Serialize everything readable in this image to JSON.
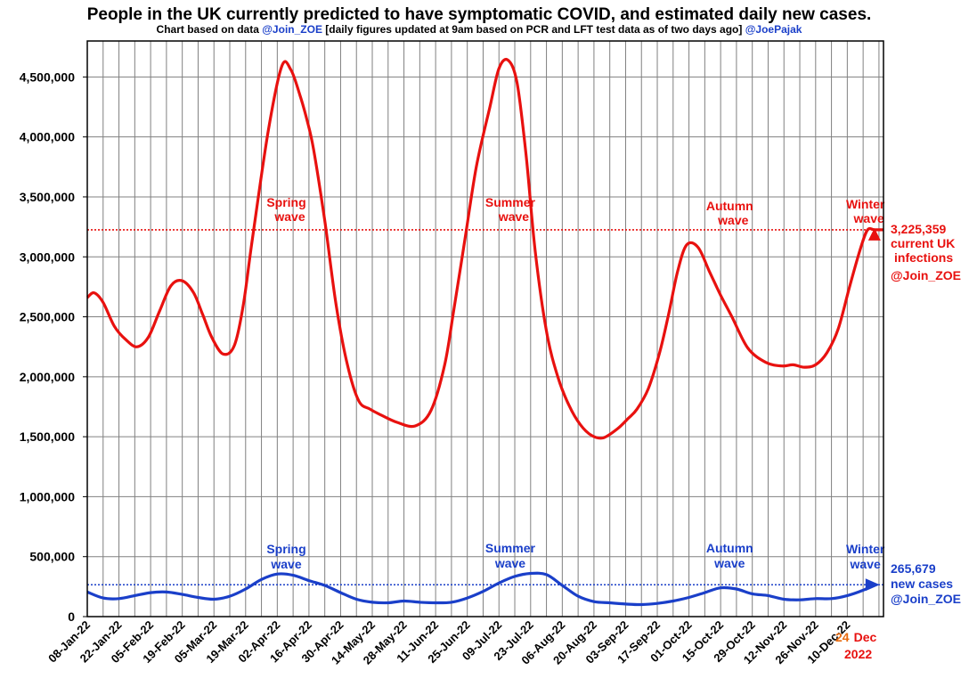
{
  "chart_data": {
    "type": "line",
    "title": "People in the UK currently predicted to have symptomatic COVID, and estimated daily new cases.",
    "subtitle": {
      "prefix": "Chart based on data ",
      "source_handle": "@Join_ZOE",
      "middle": " [daily figures updated at 9am based on PCR and LFT test data as of two days ago] ",
      "author_handle": "@JoePajak"
    },
    "ylim": [
      0,
      4800000
    ],
    "yticks": [
      0,
      500000,
      1000000,
      1500000,
      2000000,
      2500000,
      3000000,
      3500000,
      4000000,
      4500000
    ],
    "ytick_labels": [
      "0",
      "500,000",
      "1,000,000",
      "1,500,000",
      "2,000,000",
      "2,500,000",
      "3,000,000",
      "3,500,000",
      "4,000,000",
      "4,500,000"
    ],
    "x_start": "08-Jan-22",
    "x_end_day": 352,
    "xtick_labels": [
      "08-Jan-22",
      "22-Jan-22",
      "05-Feb-22",
      "19-Feb-22",
      "05-Mar-22",
      "19-Mar-22",
      "02-Apr-22",
      "16-Apr-22",
      "30-Apr-22",
      "14-May-22",
      "28-May-22",
      "11-Jun-22",
      "25-Jun-22",
      "09-Jul-22",
      "23-Jul-22",
      "06-Aug-22",
      "20-Aug-22",
      "03-Sep-22",
      "17-Sep-22",
      "01-Oct-22",
      "15-Oct-22",
      "29-Oct-22",
      "12-Nov-22",
      "26-Nov-22",
      "10-Dec-22"
    ],
    "xtick_interval_days": 14,
    "grid": true,
    "series": [
      {
        "name": "Currently predicted symptomatic COVID",
        "color": "#e8110f",
        "x": [
          0,
          3,
          7,
          12,
          17,
          22,
          27,
          32,
          37,
          42,
          47,
          51,
          55,
          60,
          65,
          69,
          73,
          80,
          86,
          90,
          94,
          97,
          100,
          105,
          110,
          115,
          120,
          125,
          130,
          137,
          145,
          152,
          158,
          162,
          167,
          172,
          178,
          182,
          186,
          190,
          194,
          198,
          203,
          208,
          213,
          218,
          223,
          228,
          234,
          239,
          243,
          248,
          253,
          257,
          261,
          265,
          270,
          275,
          280,
          285,
          292,
          300,
          307,
          312,
          317,
          322,
          327,
          332,
          337,
          342,
          345,
          348,
          352
        ],
        "values": [
          2660000,
          2700000,
          2620000,
          2420000,
          2310000,
          2250000,
          2330000,
          2550000,
          2760000,
          2800000,
          2700000,
          2520000,
          2330000,
          2190000,
          2260000,
          2600000,
          3150000,
          4050000,
          4590000,
          4560000,
          4350000,
          4150000,
          3900000,
          3300000,
          2600000,
          2100000,
          1800000,
          1730000,
          1680000,
          1620000,
          1590000,
          1720000,
          2100000,
          2550000,
          3150000,
          3750000,
          4250000,
          4570000,
          4640000,
          4450000,
          3850000,
          3050000,
          2380000,
          2000000,
          1760000,
          1600000,
          1510000,
          1490000,
          1560000,
          1650000,
          1730000,
          1900000,
          2200000,
          2520000,
          2880000,
          3100000,
          3080000,
          2880000,
          2680000,
          2500000,
          2240000,
          2120000,
          2090000,
          2100000,
          2080000,
          2100000,
          2200000,
          2400000,
          2750000,
          3080000,
          3225359,
          3225359,
          3225359
        ]
      },
      {
        "name": "Estimated daily new cases",
        "color": "#1a3fc9",
        "x": [
          0,
          7,
          14,
          21,
          28,
          35,
          42,
          49,
          56,
          63,
          70,
          77,
          84,
          91,
          98,
          105,
          112,
          119,
          126,
          133,
          140,
          147,
          154,
          161,
          168,
          175,
          182,
          189,
          196,
          203,
          210,
          217,
          224,
          231,
          238,
          245,
          252,
          259,
          266,
          273,
          280,
          287,
          294,
          301,
          308,
          315,
          322,
          329,
          336,
          343,
          348
        ],
        "values": [
          205000,
          155000,
          150000,
          175000,
          200000,
          205000,
          185000,
          160000,
          145000,
          170000,
          230000,
          310000,
          355000,
          345000,
          300000,
          260000,
          200000,
          145000,
          120000,
          115000,
          130000,
          120000,
          115000,
          120000,
          155000,
          210000,
          280000,
          335000,
          360000,
          350000,
          260000,
          170000,
          125000,
          115000,
          105000,
          100000,
          110000,
          130000,
          160000,
          200000,
          240000,
          230000,
          190000,
          175000,
          145000,
          140000,
          150000,
          150000,
          175000,
          220000,
          265679
        ]
      }
    ],
    "reference_lines": [
      {
        "value": 3225359,
        "color": "#e8110f",
        "style": "dotted"
      },
      {
        "value": 265679,
        "color": "#1a3fc9",
        "style": "dotted"
      }
    ],
    "annotations": {
      "red_waves": [
        {
          "line1": "Spring",
          "line2": "wave",
          "day": 88
        },
        {
          "line1": "Summer",
          "line2": "wave",
          "day": 187
        },
        {
          "line1": "Autumn",
          "line2": "wave",
          "day": 284
        },
        {
          "line1": "Winter",
          "line2": "wave",
          "day": 344
        }
      ],
      "blue_waves": [
        {
          "line1": "Spring",
          "line2": "wave",
          "day": 88
        },
        {
          "line1": "Summer",
          "line2": "wave",
          "day": 187
        },
        {
          "line1": "Autumn",
          "line2": "wave",
          "day": 284
        },
        {
          "line1": "Winter",
          "line2": "wave",
          "day": 344
        }
      ],
      "current_infections": {
        "value": "3,225,359",
        "line2": "current UK",
        "line3": "infections",
        "line4": "@Join_ZOE"
      },
      "current_new_cases": {
        "value": "265,679",
        "line2": "new cases",
        "line3": "@Join_ZOE"
      },
      "current_date": {
        "day": "24",
        "month": "Dec",
        "year": "2022"
      }
    },
    "colors": {
      "red": "#e8110f",
      "blue": "#1a3fc9",
      "orange": "#e86a0f",
      "grid": "#808080"
    }
  }
}
